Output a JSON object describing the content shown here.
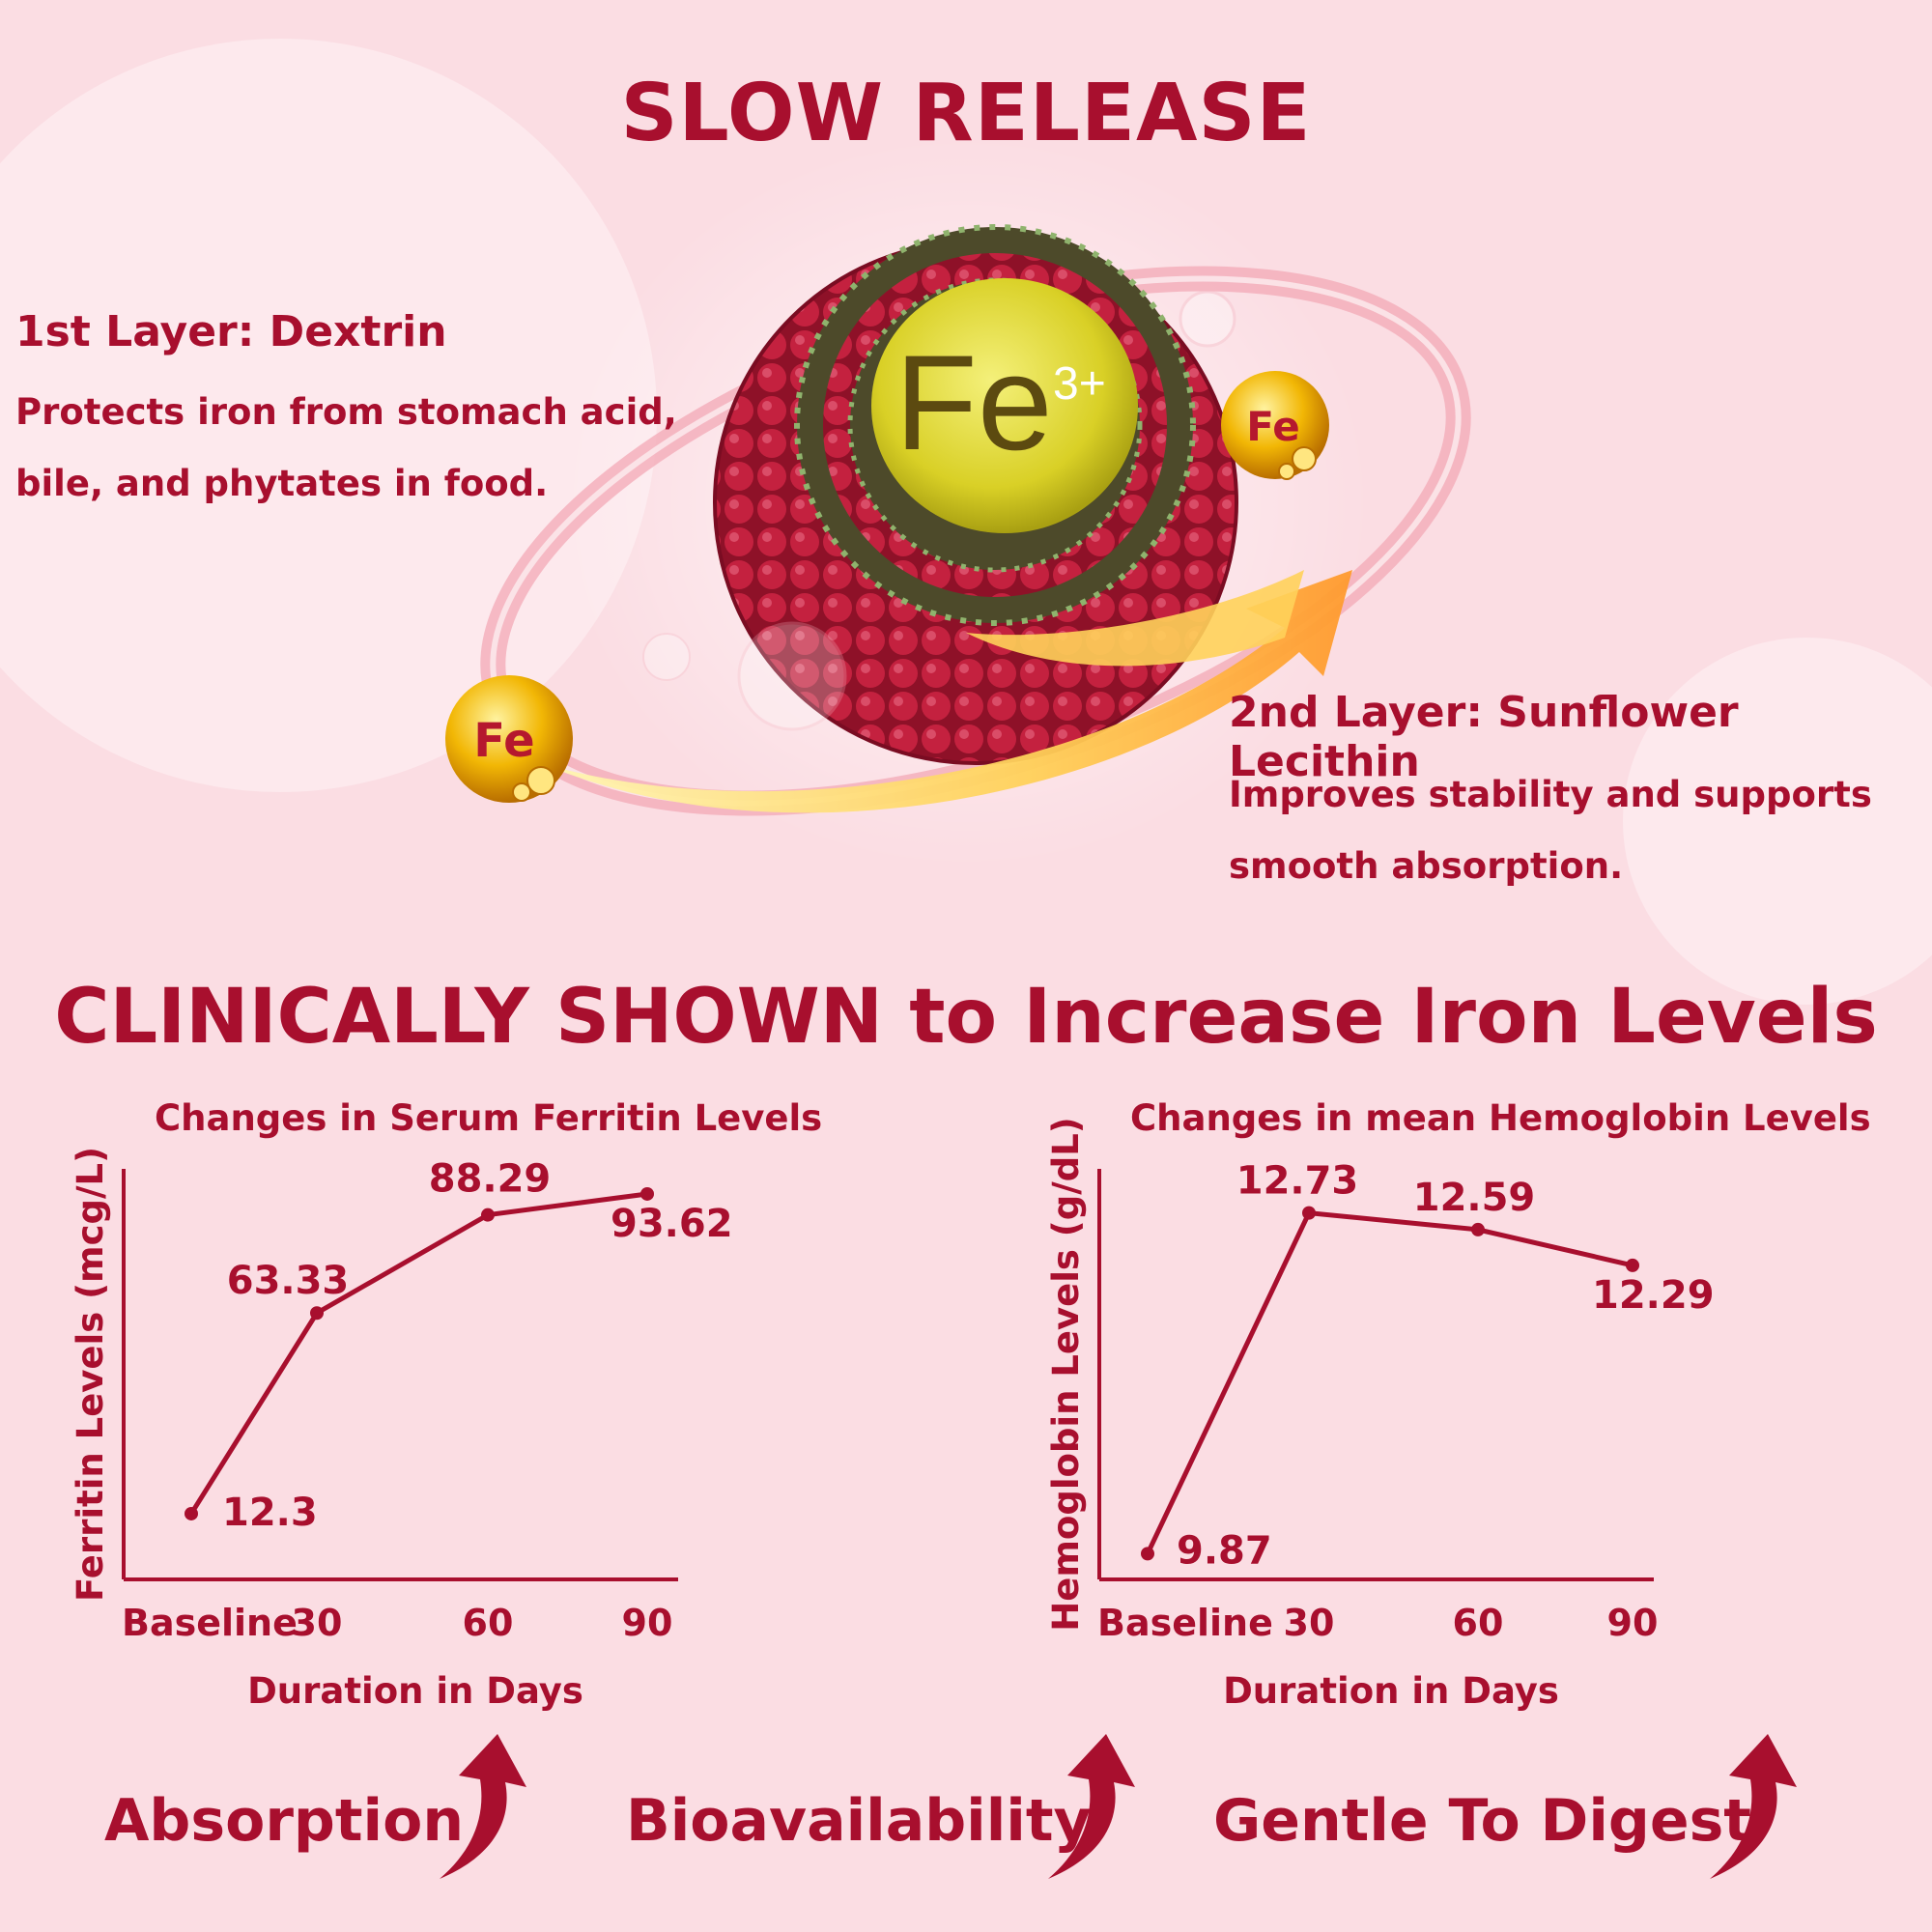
{
  "header": {
    "title": "SLOW RELEASE"
  },
  "illustration": {
    "core_symbol": "Fe",
    "core_charge": "3+",
    "orbit_particle_label": "Fe",
    "icons": [
      "iron-capsule-illustration",
      "fe-particle-icon",
      "orbit-ring",
      "release-arrow"
    ]
  },
  "layers": [
    {
      "heading": "1st Layer: Dextrin",
      "lines": [
        "Protects iron from stomach acid,",
        "bile, and phytates in food."
      ]
    },
    {
      "heading": "2nd Layer: Sunflower Lecithin",
      "lines": [
        "Improves stability and supports",
        "smooth absorption."
      ]
    }
  ],
  "section": {
    "title": "CLINICALLY SHOWN to Increase Iron Levels"
  },
  "chart_data": [
    {
      "type": "line",
      "title": "Changes in Serum Ferritin Levels",
      "xlabel": "Duration in Days",
      "ylabel": "Ferritin Levels (mcg/L)",
      "categories": [
        "Baseline",
        "30",
        "60",
        "90"
      ],
      "values": [
        12.3,
        63.33,
        88.29,
        93.62
      ],
      "labels": [
        "12.3",
        "63.33",
        "88.29",
        "93.62"
      ],
      "ylim": [
        0,
        100
      ],
      "grid": false,
      "color": "#a80f2e"
    },
    {
      "type": "line",
      "title": "Changes in mean Hemoglobin Levels",
      "xlabel": "Duration in Days",
      "ylabel": "Hemoglobin Levels (g/dL)",
      "categories": [
        "Baseline",
        "30",
        "60",
        "90"
      ],
      "values": [
        9.87,
        12.73,
        12.59,
        12.29
      ],
      "labels": [
        "9.87",
        "12.73",
        "12.59",
        "12.29"
      ],
      "ylim": [
        9.8,
        13.1
      ],
      "grid": false,
      "color": "#a80f2e"
    }
  ],
  "benefits": [
    "Absorption",
    "Bioavailability",
    "Gentle To Digest"
  ],
  "benefit_icon": "up-arrow-icon",
  "colors": {
    "primary": "#a80f2e",
    "background": "#fbdde3",
    "gold": "#f2b705",
    "core": "#d9d026"
  }
}
